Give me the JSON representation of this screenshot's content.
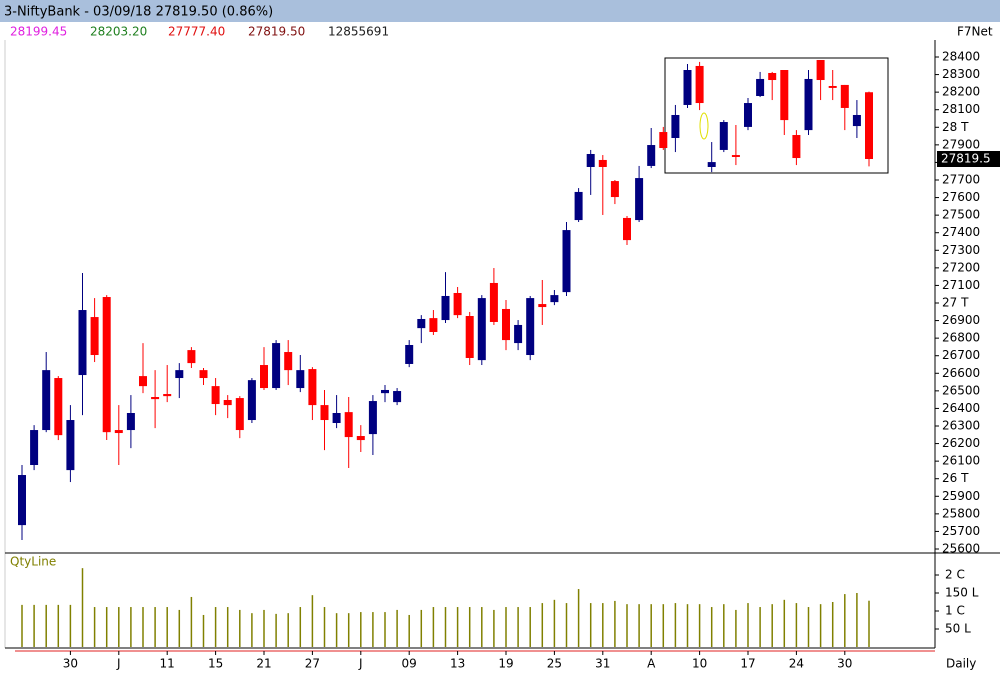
{
  "header": {
    "title": "3-NiftyBank - 03/09/18 27819.50 (0.86%)",
    "open": "28199.45",
    "high": "28203.20",
    "low": "27777.40",
    "close": "27819.50",
    "volume": "12855691",
    "source": "F7Net",
    "last_price_label": "27819.5"
  },
  "chart_data": {
    "type": "candlestick",
    "categories": [
      null,
      null,
      null,
      null,
      "30",
      null,
      null,
      null,
      "J",
      null,
      null,
      null,
      "11",
      null,
      null,
      null,
      "15",
      null,
      null,
      null,
      "21",
      null,
      null,
      null,
      "27",
      null,
      null,
      null,
      "J",
      null,
      null,
      null,
      "09",
      null,
      null,
      null,
      "13",
      null,
      null,
      null,
      "19",
      null,
      null,
      null,
      "25",
      null,
      null,
      null,
      "31",
      null,
      null,
      null,
      "A",
      null,
      null,
      null,
      "10",
      null,
      null,
      null,
      "17",
      null,
      null,
      null,
      "24",
      null,
      null,
      null,
      "30",
      null,
      null
    ],
    "open": [
      25736,
      26078,
      26277,
      26573,
      26049,
      26590,
      26920,
      27034,
      26277,
      26277,
      26584,
      26465,
      26482,
      26573,
      26732,
      26618,
      26527,
      26448,
      26459,
      26334,
      26647,
      26516,
      26721,
      26516,
      26624,
      26419,
      26317,
      26379,
      26243,
      26254,
      26487,
      26436,
      26653,
      26857,
      26914,
      26903,
      27057,
      26926,
      26675,
      27114,
      26966,
      26772,
      26704,
      26994,
      27005,
      27062,
      27472,
      27774,
      27814,
      27694,
      27484,
      27472,
      27780,
      27973,
      27939,
      28127,
      28349,
      27774,
      27871,
      27842,
      28002,
      28178,
      28309,
      28326,
      27956,
      27984,
      28383,
      28235,
      28241,
      28007,
      28199.45
    ],
    "high": [
      26078,
      26305,
      26721,
      26584,
      26419,
      27171,
      27028,
      27045,
      26419,
      26476,
      26772,
      26618,
      26647,
      26658,
      26749,
      26630,
      26573,
      26476,
      26470,
      26573,
      26749,
      26789,
      26789,
      26704,
      26635,
      26505,
      26476,
      26465,
      26305,
      26476,
      26533,
      26516,
      26789,
      26931,
      26960,
      27176,
      27091,
      26949,
      27045,
      27199,
      27017,
      26903,
      27040,
      27131,
      27074,
      27461,
      27654,
      27871,
      27842,
      27700,
      27495,
      27780,
      27996,
      28002,
      28127,
      28360,
      28372,
      27916,
      28041,
      28013,
      28167,
      28315,
      28315,
      28326,
      27984,
      28326,
      28383,
      28326,
      28241,
      28155,
      28203.2
    ],
    "low": [
      25651,
      26049,
      26265,
      26220,
      25981,
      26362,
      26664,
      26220,
      26078,
      26174,
      26487,
      26288,
      26436,
      26459,
      26630,
      26533,
      26362,
      26345,
      26231,
      26317,
      26505,
      26505,
      26533,
      26493,
      26334,
      26163,
      26288,
      26061,
      26152,
      26135,
      26436,
      26419,
      26635,
      26772,
      26818,
      26886,
      26914,
      26647,
      26647,
      26875,
      26732,
      26732,
      26675,
      26875,
      26988,
      27040,
      27461,
      27615,
      27501,
      27563,
      27330,
      27461,
      27768,
      27871,
      27859,
      28110,
      28098,
      27745,
      27859,
      27785,
      27984,
      28172,
      28155,
      27956,
      27785,
      27956,
      28155,
      28155,
      27984,
      27939,
      27777.4
    ],
    "close": [
      26021,
      26277,
      26618,
      26248,
      26334,
      26960,
      26704,
      26265,
      26260,
      26374,
      26527,
      26453,
      26470,
      26618,
      26658,
      26573,
      26425,
      26419,
      26277,
      26561,
      26516,
      26772,
      26618,
      26618,
      26419,
      26334,
      26374,
      26237,
      26220,
      26442,
      26505,
      26499,
      26761,
      26909,
      26835,
      27040,
      26931,
      26687,
      27028,
      26892,
      26789,
      26875,
      27028,
      26977,
      27045,
      27415,
      27632,
      27848,
      27774,
      27603,
      27358,
      27711,
      27899,
      27882,
      28070,
      28326,
      28138,
      27802,
      28030,
      27831,
      28138,
      28275,
      28269,
      28041,
      27825,
      28275,
      28269,
      28224,
      28110,
      28070,
      27819.5
    ],
    "up_color": "#000080",
    "down_color": "#ff0000",
    "ylim": [
      25600,
      28400
    ],
    "yticks": [
      28400,
      28300,
      28200,
      28100,
      {
        "value": 28000,
        "label": "28 T"
      },
      27900,
      27800,
      27700,
      27600,
      27500,
      27400,
      27300,
      27200,
      27100,
      {
        "value": 27000,
        "label": "27 T"
      },
      26900,
      26800,
      26700,
      26600,
      26500,
      26400,
      26300,
      26200,
      26100,
      {
        "value": 26000,
        "label": "26 T"
      },
      25900,
      25800,
      25700,
      25600
    ],
    "volume": {
      "label": "QtyLine",
      "color": "#808000",
      "values": [
        11700000,
        11700000,
        11700000,
        11700000,
        11700000,
        21900000,
        11100000,
        11100000,
        11100000,
        11100000,
        11100000,
        11100000,
        11100000,
        10300000,
        13900000,
        8900000,
        11100000,
        11100000,
        10300000,
        9400000,
        10300000,
        9200000,
        9400000,
        11100000,
        14400000,
        11100000,
        9400000,
        9400000,
        9700000,
        9700000,
        9700000,
        10300000,
        8900000,
        10300000,
        11100000,
        11100000,
        11100000,
        11100000,
        11100000,
        10300000,
        11100000,
        11100000,
        11100000,
        12200000,
        13100000,
        12200000,
        16100000,
        12200000,
        12200000,
        12800000,
        11900000,
        11900000,
        11900000,
        11900000,
        12200000,
        11900000,
        11900000,
        11100000,
        11900000,
        10300000,
        12200000,
        11100000,
        11900000,
        13100000,
        12200000,
        11100000,
        11900000,
        12500000,
        14700000,
        15000000,
        12855691
      ],
      "ylim": [
        0,
        25000000
      ],
      "yticks": [
        {
          "value": 20000000,
          "label": "2 C"
        },
        {
          "value": 15000000,
          "label": "150 L"
        },
        {
          "value": 10000000,
          "label": "1 C"
        },
        {
          "value": 5000000,
          "label": "50 L"
        }
      ]
    },
    "period_label": "Daily"
  }
}
